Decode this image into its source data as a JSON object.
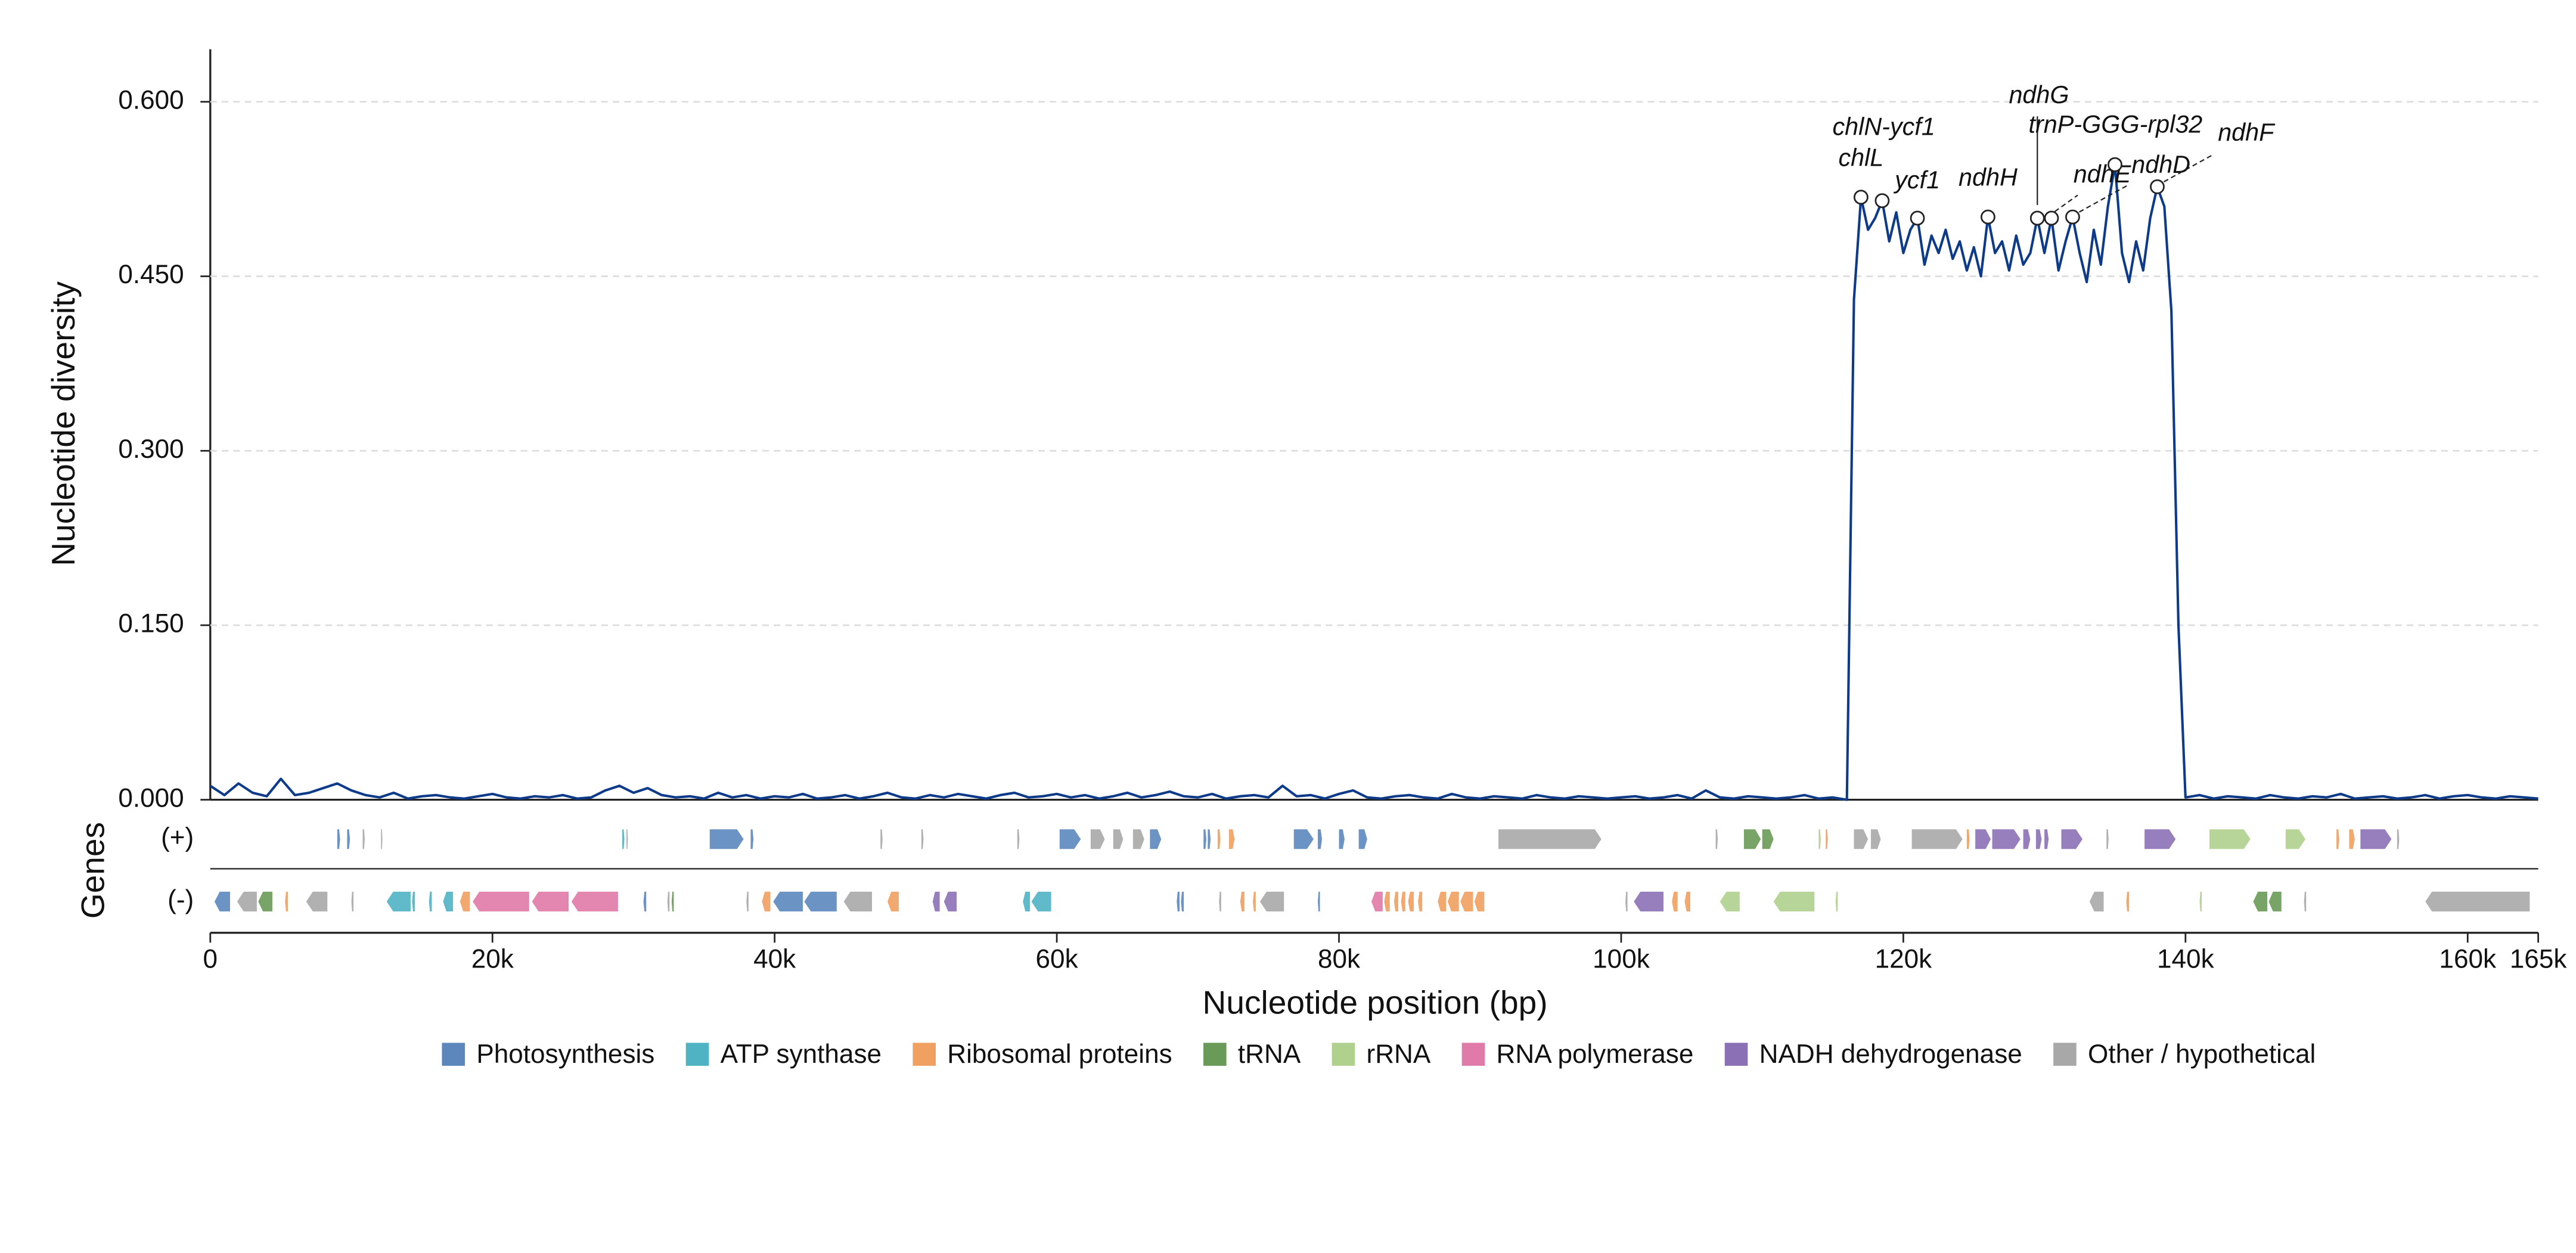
{
  "chart_data": {
    "type": "line",
    "ylabel": "Nucleotide diversity",
    "xlabel": "Nucleotide position (bp)",
    "color": "#0d3b8a",
    "x": [
      0,
      1000,
      2000,
      3000,
      4000,
      5000,
      6000,
      7000,
      8000,
      9000,
      10000,
      11000,
      12000,
      13000,
      14000,
      15000,
      16000,
      17000,
      18000,
      19000,
      20000,
      21000,
      22000,
      23000,
      24000,
      25000,
      26000,
      27000,
      28000,
      29000,
      30000,
      31000,
      32000,
      33000,
      34000,
      35000,
      36000,
      37000,
      38000,
      39000,
      40000,
      41000,
      42000,
      43000,
      44000,
      45000,
      46000,
      47000,
      48000,
      49000,
      50000,
      51000,
      52000,
      53000,
      54000,
      55000,
      56000,
      57000,
      58000,
      59000,
      60000,
      61000,
      62000,
      63000,
      64000,
      65000,
      66000,
      67000,
      68000,
      69000,
      70000,
      71000,
      72000,
      73000,
      74000,
      75000,
      76000,
      77000,
      78000,
      79000,
      80000,
      81000,
      82000,
      83000,
      84000,
      85000,
      86000,
      87000,
      88000,
      89000,
      90000,
      91000,
      92000,
      93000,
      94000,
      95000,
      96000,
      97000,
      98000,
      99000,
      100000,
      101000,
      102000,
      103000,
      104000,
      105000,
      106000,
      107000,
      108000,
      109000,
      110000,
      111000,
      112000,
      113000,
      114000,
      115000,
      116000,
      116500,
      117000,
      117500,
      118000,
      118500,
      119000,
      119500,
      120000,
      120500,
      121000,
      121500,
      122000,
      122500,
      123000,
      123500,
      124000,
      124500,
      125000,
      125500,
      126000,
      126500,
      127000,
      127500,
      128000,
      128500,
      129000,
      129500,
      130000,
      130500,
      131000,
      131500,
      132000,
      132500,
      133000,
      133500,
      134000,
      134500,
      135000,
      135500,
      136000,
      136500,
      137000,
      137500,
      138000,
      138500,
      139000,
      139500,
      140000,
      141000,
      142000,
      143000,
      144000,
      145000,
      146000,
      147000,
      148000,
      149000,
      150000,
      151000,
      152000,
      153000,
      154000,
      155000,
      156000,
      157000,
      158000,
      159000,
      160000,
      161000,
      162000,
      163000,
      164000,
      165000
    ],
    "values": [
      0.012,
      0.004,
      0.014,
      0.006,
      0.003,
      0.018,
      0.004,
      0.006,
      0.01,
      0.014,
      0.008,
      0.004,
      0.002,
      0.006,
      0.001,
      0.003,
      0.004,
      0.002,
      0.001,
      0.003,
      0.005,
      0.002,
      0.001,
      0.003,
      0.002,
      0.004,
      0.001,
      0.002,
      0.008,
      0.012,
      0.006,
      0.01,
      0.004,
      0.002,
      0.003,
      0.001,
      0.006,
      0.002,
      0.004,
      0.001,
      0.003,
      0.002,
      0.005,
      0.001,
      0.002,
      0.004,
      0.001,
      0.003,
      0.006,
      0.002,
      0.001,
      0.004,
      0.002,
      0.005,
      0.003,
      0.001,
      0.004,
      0.006,
      0.002,
      0.003,
      0.005,
      0.002,
      0.004,
      0.001,
      0.003,
      0.006,
      0.002,
      0.004,
      0.007,
      0.003,
      0.002,
      0.005,
      0.001,
      0.003,
      0.004,
      0.002,
      0.012,
      0.003,
      0.004,
      0.001,
      0.005,
      0.008,
      0.002,
      0.001,
      0.003,
      0.004,
      0.002,
      0.001,
      0.005,
      0.002,
      0.001,
      0.003,
      0.002,
      0.001,
      0.004,
      0.002,
      0.001,
      0.003,
      0.002,
      0.001,
      0.002,
      0.003,
      0.001,
      0.002,
      0.004,
      0.001,
      0.008,
      0.002,
      0.001,
      0.003,
      0.002,
      0.001,
      0.002,
      0.004,
      0.001,
      0.002,
      0.0,
      0.43,
      0.518,
      0.49,
      0.5,
      0.515,
      0.48,
      0.505,
      0.47,
      0.49,
      0.5,
      0.46,
      0.485,
      0.47,
      0.49,
      0.465,
      0.48,
      0.455,
      0.475,
      0.45,
      0.501,
      0.47,
      0.48,
      0.455,
      0.485,
      0.46,
      0.47,
      0.5,
      0.47,
      0.5,
      0.455,
      0.48,
      0.501,
      0.47,
      0.445,
      0.49,
      0.46,
      0.51,
      0.546,
      0.47,
      0.445,
      0.48,
      0.455,
      0.5,
      0.527,
      0.51,
      0.42,
      0.15,
      0.002,
      0.004,
      0.001,
      0.003,
      0.002,
      0.001,
      0.004,
      0.002,
      0.001,
      0.003,
      0.002,
      0.005,
      0.001,
      0.002,
      0.003,
      0.001,
      0.002,
      0.004,
      0.001,
      0.003,
      0.004,
      0.002,
      0.001,
      0.003,
      0.002,
      0.001
    ],
    "xlim": [
      0,
      165000
    ],
    "ylim": [
      0,
      0.64
    ],
    "xticks": [
      0,
      {
        "value": 20000,
        "label": "20k"
      },
      {
        "value": 40000,
        "label": "40k"
      },
      {
        "value": 60000,
        "label": "60k"
      },
      {
        "value": 80000,
        "label": "80k"
      },
      {
        "value": 100000,
        "label": "100k"
      },
      {
        "value": 120000,
        "label": "120k"
      },
      {
        "value": 140000,
        "label": "140k"
      },
      {
        "value": 160000,
        "label": "160k"
      },
      {
        "value": 165000,
        "label": "165k"
      }
    ],
    "yticks": [
      {
        "value": 0,
        "label": "0.000"
      },
      {
        "value": 0.15,
        "label": "0.150"
      },
      {
        "value": 0.3,
        "label": "0.300"
      },
      {
        "value": 0.45,
        "label": "0.450"
      },
      {
        "value": 0.6,
        "label": "0.600"
      }
    ],
    "grid": true,
    "annotations": [
      {
        "label": "chlL",
        "x": 117000,
        "y": 0.518
      },
      {
        "label": "chlN-ycf1",
        "x": 118500,
        "y": 0.515
      },
      {
        "label": "ycf1",
        "x": 121000,
        "y": 0.5
      },
      {
        "label": "ndhH",
        "x": 126000,
        "y": 0.501
      },
      {
        "label": "ndhG",
        "x": 129500,
        "y": 0.5
      },
      {
        "label": "trnP-GGG-rpl32",
        "x": 130500,
        "y": 0.5
      },
      {
        "label": "ndhE",
        "x": 132000,
        "y": 0.501
      },
      {
        "label": "ndhD",
        "x": 135000,
        "y": 0.546
      },
      {
        "label": "ndhF",
        "x": 138000,
        "y": 0.527
      }
    ],
    "gene_track": {
      "label": "Genes",
      "plus_label": "(+)",
      "minus_label": "(-)"
    },
    "gene_categories": [
      {
        "name": "Photosynthesis",
        "color": "#5b87bd"
      },
      {
        "name": "ATP synthase",
        "color": "#4fb3c3"
      },
      {
        "name": "Ribosomal proteins",
        "color": "#f0a060"
      },
      {
        "name": "tRNA",
        "color": "#6a9a58"
      },
      {
        "name": "rRNA",
        "color": "#b0d08e"
      },
      {
        "name": "RNA polymerase",
        "color": "#e07aa8"
      },
      {
        "name": "NADH dehydrogenase",
        "color": "#8c70b5"
      },
      {
        "name": "Other / hypothetical",
        "color": "#a8a8a8"
      }
    ],
    "genes": {
      "plus": [
        [
          9000,
          9200,
          0
        ],
        [
          9700,
          9900,
          0
        ],
        [
          10800,
          10950,
          7
        ],
        [
          12100,
          12200,
          7
        ],
        [
          29200,
          29350,
          1
        ],
        [
          29500,
          29600,
          7
        ],
        [
          35400,
          37800,
          0
        ],
        [
          38300,
          38500,
          0
        ],
        [
          47500,
          47650,
          7
        ],
        [
          50400,
          50550,
          7
        ],
        [
          57200,
          57350,
          7
        ],
        [
          60200,
          61700,
          0
        ],
        [
          62400,
          63400,
          7
        ],
        [
          64000,
          64700,
          7
        ],
        [
          65400,
          66200,
          7
        ],
        [
          66600,
          67400,
          0
        ],
        [
          70400,
          70600,
          0
        ],
        [
          70700,
          70900,
          0
        ],
        [
          71400,
          71600,
          2
        ],
        [
          72200,
          72600,
          2
        ],
        [
          76800,
          78200,
          0
        ],
        [
          78500,
          78800,
          0
        ],
        [
          80000,
          80400,
          0
        ],
        [
          81400,
          82000,
          0
        ],
        [
          91300,
          98600,
          7
        ],
        [
          106700,
          106850,
          7
        ],
        [
          108700,
          109900,
          3
        ],
        [
          110000,
          110800,
          3
        ],
        [
          114000,
          114150,
          4
        ],
        [
          114500,
          114650,
          2
        ],
        [
          116500,
          117500,
          7
        ],
        [
          117700,
          118400,
          7
        ],
        [
          120600,
          124200,
          7
        ],
        [
          124500,
          124700,
          2
        ],
        [
          125100,
          126200,
          6
        ],
        [
          126300,
          128300,
          6
        ],
        [
          128500,
          129000,
          6
        ],
        [
          129400,
          129800,
          6
        ],
        [
          130000,
          130300,
          6
        ],
        [
          131200,
          132700,
          6
        ],
        [
          134400,
          134550,
          7
        ],
        [
          137100,
          139300,
          6
        ],
        [
          141700,
          144600,
          4
        ],
        [
          147100,
          148500,
          4
        ],
        [
          150700,
          150900,
          2
        ],
        [
          151600,
          152000,
          2
        ],
        [
          152400,
          154600,
          6
        ],
        [
          155000,
          155150,
          7
        ]
      ],
      "minus": [
        [
          300,
          1400,
          0
        ],
        [
          1900,
          3300,
          7
        ],
        [
          3400,
          4400,
          3
        ],
        [
          5300,
          5500,
          2
        ],
        [
          6800,
          8300,
          7
        ],
        [
          10000,
          10150,
          7
        ],
        [
          12500,
          14200,
          1
        ],
        [
          14300,
          14500,
          1
        ],
        [
          15500,
          15700,
          1
        ],
        [
          16500,
          17200,
          1
        ],
        [
          17700,
          18400,
          2
        ],
        [
          18600,
          22600,
          5
        ],
        [
          22800,
          25400,
          5
        ],
        [
          25600,
          28900,
          5
        ],
        [
          30700,
          30900,
          0
        ],
        [
          32400,
          32550,
          7
        ],
        [
          32700,
          32850,
          3
        ],
        [
          38000,
          38150,
          7
        ],
        [
          39100,
          39700,
          2
        ],
        [
          39900,
          42000,
          0
        ],
        [
          42100,
          44400,
          0
        ],
        [
          44900,
          46900,
          7
        ],
        [
          48000,
          48800,
          2
        ],
        [
          51200,
          51700,
          6
        ],
        [
          52000,
          52900,
          6
        ],
        [
          57600,
          58100,
          1
        ],
        [
          58200,
          59600,
          1
        ],
        [
          68500,
          68700,
          0
        ],
        [
          68800,
          69000,
          0
        ],
        [
          71500,
          71650,
          7
        ],
        [
          73000,
          73300,
          2
        ],
        [
          73900,
          74100,
          2
        ],
        [
          74400,
          76100,
          7
        ],
        [
          78500,
          78650,
          0
        ],
        [
          82300,
          83100,
          5
        ],
        [
          83200,
          83600,
          2
        ],
        [
          83900,
          84200,
          2
        ],
        [
          84400,
          84700,
          2
        ],
        [
          84900,
          85300,
          2
        ],
        [
          85600,
          85900,
          2
        ],
        [
          87000,
          87600,
          2
        ],
        [
          87700,
          88500,
          2
        ],
        [
          88600,
          89500,
          2
        ],
        [
          89600,
          90300,
          2
        ],
        [
          100300,
          100450,
          7
        ],
        [
          100900,
          103000,
          6
        ],
        [
          103600,
          104000,
          2
        ],
        [
          104500,
          104900,
          2
        ],
        [
          107000,
          108400,
          4
        ],
        [
          110800,
          113700,
          4
        ],
        [
          115200,
          115350,
          4
        ],
        [
          133200,
          134200,
          7
        ],
        [
          135800,
          136000,
          2
        ],
        [
          141000,
          141150,
          4
        ],
        [
          144800,
          145800,
          3
        ],
        [
          145900,
          146800,
          3
        ],
        [
          148400,
          148550,
          7
        ],
        [
          157000,
          164400,
          7
        ]
      ]
    }
  }
}
